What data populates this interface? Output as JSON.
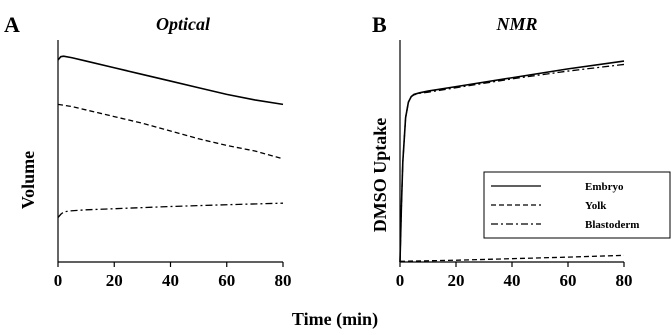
{
  "chart_data": [
    {
      "type": "line",
      "panel": "A",
      "title": "Optical",
      "xlabel": "Time (min)",
      "ylabel": "Volume",
      "xlim": [
        0,
        80
      ],
      "ylim": [
        0,
        1
      ],
      "xticks": [
        0,
        20,
        40,
        60,
        80
      ],
      "series": [
        {
          "key": "embryo",
          "style": "solid",
          "x": [
            0,
            1,
            2,
            5,
            10,
            20,
            30,
            40,
            50,
            60,
            70,
            80
          ],
          "y": [
            0.91,
            0.925,
            0.927,
            0.92,
            0.905,
            0.875,
            0.845,
            0.815,
            0.785,
            0.755,
            0.73,
            0.71
          ]
        },
        {
          "key": "yolk",
          "style": "dashed",
          "x": [
            0,
            5,
            10,
            20,
            30,
            40,
            50,
            60,
            70,
            80
          ],
          "y": [
            0.71,
            0.7,
            0.685,
            0.655,
            0.625,
            0.59,
            0.555,
            0.525,
            0.5,
            0.465
          ]
        },
        {
          "key": "blastoderm",
          "style": "dashdot",
          "x": [
            0,
            1,
            2,
            4,
            10,
            20,
            40,
            60,
            80
          ],
          "y": [
            0.2,
            0.215,
            0.225,
            0.23,
            0.235,
            0.24,
            0.25,
            0.258,
            0.265
          ]
        }
      ]
    },
    {
      "type": "line",
      "panel": "B",
      "title": "NMR",
      "xlabel": "Time (min)",
      "ylabel": "DMSO Uptake",
      "xlim": [
        0,
        80
      ],
      "ylim": [
        0,
        1
      ],
      "xticks": [
        0,
        20,
        40,
        60,
        80
      ],
      "legend_position": "right",
      "series": [
        {
          "key": "embryo",
          "name": "Embryo",
          "style": "solid",
          "x": [
            0,
            0.5,
            1,
            2,
            3,
            4,
            5,
            7,
            10,
            20,
            40,
            60,
            80
          ],
          "y": [
            0.0,
            0.25,
            0.45,
            0.65,
            0.72,
            0.745,
            0.755,
            0.762,
            0.77,
            0.79,
            0.83,
            0.87,
            0.905
          ]
        },
        {
          "key": "yolk",
          "name": "Yolk",
          "style": "dashed",
          "x": [
            0,
            20,
            40,
            60,
            80
          ],
          "y": [
            0.003,
            0.008,
            0.015,
            0.022,
            0.03
          ]
        },
        {
          "key": "blastoderm",
          "name": "Blastoderm",
          "style": "dashdot",
          "x": [
            0,
            0.5,
            1,
            2,
            3,
            4,
            5,
            7,
            10,
            20,
            40,
            60,
            80
          ],
          "y": [
            0.0,
            0.25,
            0.45,
            0.65,
            0.72,
            0.745,
            0.753,
            0.76,
            0.765,
            0.785,
            0.825,
            0.86,
            0.89
          ]
        }
      ]
    }
  ],
  "styles": {
    "line_color": "#000000",
    "background": "#ffffff"
  }
}
